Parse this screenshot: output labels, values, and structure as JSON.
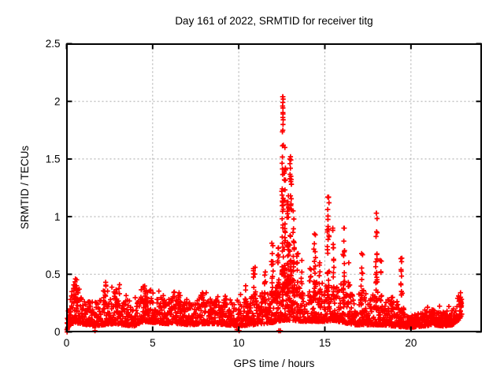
{
  "figure": {
    "background_color": "#ffffff",
    "border_color": "#000000",
    "grid_color": "#a8a8a8",
    "marker_color": "#ff0000",
    "text_color": "#000000"
  },
  "chart_data": {
    "type": "scatter",
    "title": "Day 161 of 2022, SRMTID for receiver titg",
    "xlabel": "GPS time / hours",
    "ylabel": "SRMTID / TECUs",
    "xlim": [
      0,
      24.1
    ],
    "ylim": [
      0,
      2.5
    ],
    "xticks": [
      0,
      5,
      10,
      15,
      20
    ],
    "xtick_labels": [
      "0",
      "5",
      "10",
      "15",
      "20"
    ],
    "yticks": [
      0,
      0.5,
      1,
      1.5,
      2,
      2.5
    ],
    "ytick_labels": [
      "0",
      "0.5",
      "1",
      "1.5",
      "2",
      "2.5"
    ],
    "grid": true,
    "legend": false,
    "marker": "plus",
    "marker_color": "#ff0000",
    "time_range_hours": [
      0.02,
      22.95
    ],
    "peak": {
      "t": 12.55,
      "value": 2.04
    },
    "baseline_envelope": [
      [
        0.0,
        0.01,
        0.1
      ],
      [
        0.15,
        0.05,
        0.24
      ],
      [
        0.45,
        0.08,
        0.35
      ],
      [
        0.9,
        0.07,
        0.3
      ],
      [
        1.5,
        0.05,
        0.26
      ],
      [
        2.1,
        0.06,
        0.32
      ],
      [
        2.7,
        0.07,
        0.32
      ],
      [
        3.3,
        0.06,
        0.28
      ],
      [
        3.9,
        0.05,
        0.26
      ],
      [
        4.5,
        0.09,
        0.33
      ],
      [
        5.1,
        0.08,
        0.3
      ],
      [
        5.8,
        0.07,
        0.28
      ],
      [
        6.5,
        0.07,
        0.3
      ],
      [
        7.2,
        0.06,
        0.26
      ],
      [
        7.9,
        0.07,
        0.3
      ],
      [
        8.6,
        0.07,
        0.29
      ],
      [
        9.3,
        0.06,
        0.28
      ],
      [
        10.0,
        0.05,
        0.26
      ],
      [
        10.7,
        0.06,
        0.29
      ],
      [
        11.4,
        0.07,
        0.32
      ],
      [
        12.0,
        0.08,
        0.36
      ],
      [
        12.5,
        0.1,
        0.46
      ],
      [
        13.1,
        0.1,
        0.44
      ],
      [
        13.7,
        0.09,
        0.38
      ],
      [
        14.3,
        0.09,
        0.36
      ],
      [
        14.9,
        0.09,
        0.38
      ],
      [
        15.5,
        0.1,
        0.4
      ],
      [
        16.1,
        0.08,
        0.36
      ],
      [
        16.8,
        0.06,
        0.3
      ],
      [
        17.6,
        0.06,
        0.3
      ],
      [
        18.3,
        0.06,
        0.3
      ],
      [
        19.0,
        0.05,
        0.27
      ],
      [
        19.6,
        0.04,
        0.18
      ],
      [
        20.1,
        0.04,
        0.14
      ],
      [
        20.7,
        0.05,
        0.17
      ],
      [
        21.3,
        0.06,
        0.21
      ],
      [
        21.9,
        0.05,
        0.17
      ],
      [
        22.4,
        0.06,
        0.2
      ],
      [
        22.75,
        0.1,
        0.27
      ],
      [
        22.95,
        0.14,
        0.33
      ]
    ],
    "spikes": [
      [
        0.55,
        0.46,
        0.12,
        22
      ],
      [
        2.2,
        0.43,
        0.09,
        10
      ],
      [
        3.0,
        0.41,
        0.08,
        8
      ],
      [
        4.6,
        0.38,
        0.15,
        12
      ],
      [
        6.55,
        0.34,
        0.08,
        6
      ],
      [
        7.9,
        0.33,
        0.08,
        6
      ],
      [
        9.2,
        0.31,
        0.08,
        5
      ],
      [
        10.45,
        0.4,
        0.05,
        6
      ],
      [
        10.9,
        0.56,
        0.06,
        12
      ],
      [
        11.55,
        0.52,
        0.05,
        9
      ],
      [
        11.95,
        0.77,
        0.05,
        16
      ],
      [
        12.3,
        0.73,
        0.06,
        20
      ],
      [
        12.55,
        2.04,
        0.04,
        48
      ],
      [
        12.68,
        1.6,
        0.04,
        26
      ],
      [
        12.85,
        1.18,
        0.06,
        40
      ],
      [
        13.02,
        1.52,
        0.05,
        28
      ],
      [
        13.18,
        1.05,
        0.05,
        22
      ],
      [
        13.4,
        0.68,
        0.05,
        12
      ],
      [
        13.65,
        0.62,
        0.06,
        8
      ],
      [
        14.15,
        0.55,
        0.05,
        10
      ],
      [
        14.4,
        0.85,
        0.06,
        22
      ],
      [
        14.7,
        0.6,
        0.05,
        10
      ],
      [
        15.2,
        1.17,
        0.06,
        30
      ],
      [
        15.5,
        0.9,
        0.04,
        14
      ],
      [
        16.1,
        0.9,
        0.05,
        20
      ],
      [
        16.4,
        0.6,
        0.05,
        8
      ],
      [
        17.15,
        0.68,
        0.05,
        14
      ],
      [
        18.0,
        1.03,
        0.05,
        24
      ],
      [
        18.25,
        0.62,
        0.04,
        8
      ],
      [
        18.9,
        0.3,
        0.06,
        6
      ],
      [
        19.45,
        0.64,
        0.05,
        14
      ],
      [
        22.9,
        0.34,
        0.05,
        10
      ]
    ],
    "notable_points": [
      [
        12.55,
        2.04
      ],
      [
        12.56,
        1.99
      ],
      [
        12.55,
        1.96
      ],
      [
        12.57,
        1.89
      ],
      [
        12.56,
        1.86
      ],
      [
        12.58,
        1.84
      ],
      [
        12.57,
        1.8
      ],
      [
        12.56,
        1.75
      ],
      [
        12.59,
        1.62
      ],
      [
        12.5,
        1.22
      ],
      [
        12.97,
        1.5
      ],
      [
        13.0,
        1.42
      ],
      [
        13.03,
        1.35
      ],
      [
        13.06,
        1.28
      ],
      [
        15.22,
        1.17
      ],
      [
        15.24,
        1.12
      ],
      [
        18.0,
        1.03
      ],
      [
        16.1,
        0.9
      ],
      [
        14.4,
        0.85
      ]
    ],
    "near_zero_points": [
      [
        0.03,
        0.0
      ],
      [
        0.05,
        0.02
      ],
      [
        0.07,
        0.04
      ],
      [
        1.65,
        0.01
      ],
      [
        9.9,
        0.02
      ],
      [
        10.02,
        0.01
      ],
      [
        12.33,
        0.01
      ],
      [
        12.42,
        0.01
      ]
    ],
    "gen": {
      "n_baseline": 2100,
      "seed": 161
    }
  }
}
